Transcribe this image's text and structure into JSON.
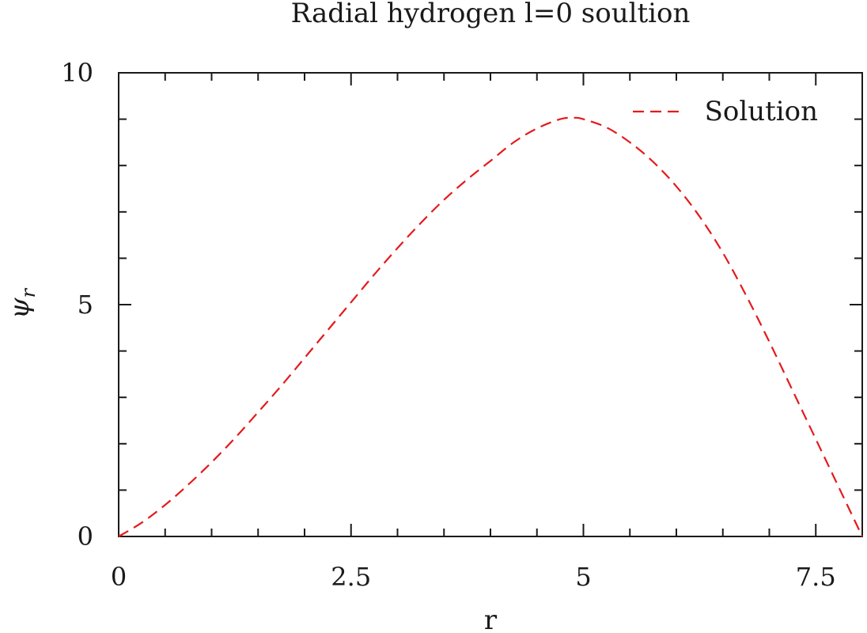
{
  "chart_data": {
    "type": "line",
    "title": "Radial hydrogen l=0 soultion",
    "xlabel": "r",
    "ylabel": "ψ",
    "ylabel_subscript": "r",
    "xlim": [
      0,
      8
    ],
    "ylim": [
      0,
      10
    ],
    "x_ticks": [
      0,
      2.5,
      5,
      7.5
    ],
    "x_tick_labels": [
      "0",
      "2.5",
      "5",
      "7.5"
    ],
    "x_minor_ticks": [
      0.5,
      1,
      1.5,
      2,
      3,
      3.5,
      4,
      4.5,
      5.5,
      6,
      6.5,
      7
    ],
    "y_ticks": [
      0,
      5,
      10
    ],
    "y_tick_labels": [
      "0",
      "5",
      "10"
    ],
    "y_minor_ticks": [
      1,
      2,
      3,
      4,
      6,
      7,
      8,
      9
    ],
    "grid": false,
    "legend_position": "top-right",
    "series": [
      {
        "name": "Solution",
        "color": "#e41a1c",
        "line_style": "dashed",
        "x": [
          0,
          0.25,
          0.5,
          0.75,
          1,
          1.25,
          1.5,
          1.75,
          2,
          2.25,
          2.5,
          2.75,
          3,
          3.25,
          3.5,
          3.75,
          4,
          4.25,
          4.5,
          4.75,
          4.9,
          5,
          5.25,
          5.5,
          5.75,
          6,
          6.25,
          6.5,
          6.75,
          7,
          7.25,
          7.5,
          7.75,
          8
        ],
        "y": [
          0,
          0.3,
          0.68,
          1.12,
          1.6,
          2.12,
          2.68,
          3.25,
          3.85,
          4.45,
          5.05,
          5.65,
          6.22,
          6.76,
          7.26,
          7.7,
          8.1,
          8.5,
          8.8,
          9.0,
          9.03,
          9.0,
          8.82,
          8.5,
          8.08,
          7.55,
          6.9,
          6.12,
          5.2,
          4.2,
          3.15,
          2.1,
          1.05,
          0
        ]
      }
    ]
  }
}
